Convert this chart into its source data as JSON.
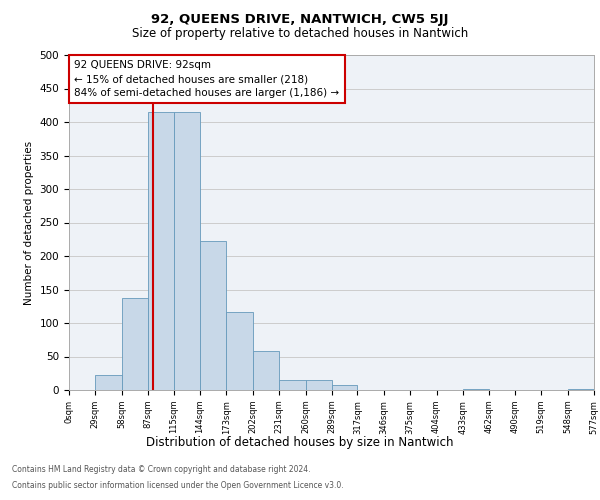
{
  "title1": "92, QUEENS DRIVE, NANTWICH, CW5 5JJ",
  "title2": "Size of property relative to detached houses in Nantwich",
  "xlabel": "Distribution of detached houses by size in Nantwich",
  "ylabel": "Number of detached properties",
  "bar_left_edges": [
    0,
    29,
    58,
    87,
    115,
    144,
    173,
    202,
    231,
    260,
    289,
    317,
    346,
    375,
    404,
    433,
    462,
    490,
    519,
    548
  ],
  "bar_widths": [
    29,
    29,
    29,
    28,
    29,
    29,
    29,
    29,
    29,
    29,
    28,
    29,
    29,
    29,
    29,
    29,
    28,
    29,
    29,
    29
  ],
  "bar_heights": [
    0,
    22,
    138,
    415,
    415,
    223,
    116,
    58,
    15,
    15,
    7,
    0,
    0,
    0,
    0,
    1,
    0,
    0,
    0,
    1
  ],
  "bar_color": "#c8d8e8",
  "bar_edgecolor": "#6699bb",
  "tick_labels": [
    "0sqm",
    "29sqm",
    "58sqm",
    "87sqm",
    "115sqm",
    "144sqm",
    "173sqm",
    "202sqm",
    "231sqm",
    "260sqm",
    "289sqm",
    "317sqm",
    "346sqm",
    "375sqm",
    "404sqm",
    "433sqm",
    "462sqm",
    "490sqm",
    "519sqm",
    "548sqm",
    "577sqm"
  ],
  "ylim": [
    0,
    500
  ],
  "yticks": [
    0,
    50,
    100,
    150,
    200,
    250,
    300,
    350,
    400,
    450,
    500
  ],
  "property_size": 92,
  "vline_color": "#cc0000",
  "annotation_title": "92 QUEENS DRIVE: 92sqm",
  "annotation_line1": "← 15% of detached houses are smaller (218)",
  "annotation_line2": "84% of semi-detached houses are larger (1,186) →",
  "annotation_box_edgecolor": "#cc0000",
  "grid_color": "#cccccc",
  "bg_color": "#eef2f7",
  "footer1": "Contains HM Land Registry data © Crown copyright and database right 2024.",
  "footer2": "Contains public sector information licensed under the Open Government Licence v3.0."
}
